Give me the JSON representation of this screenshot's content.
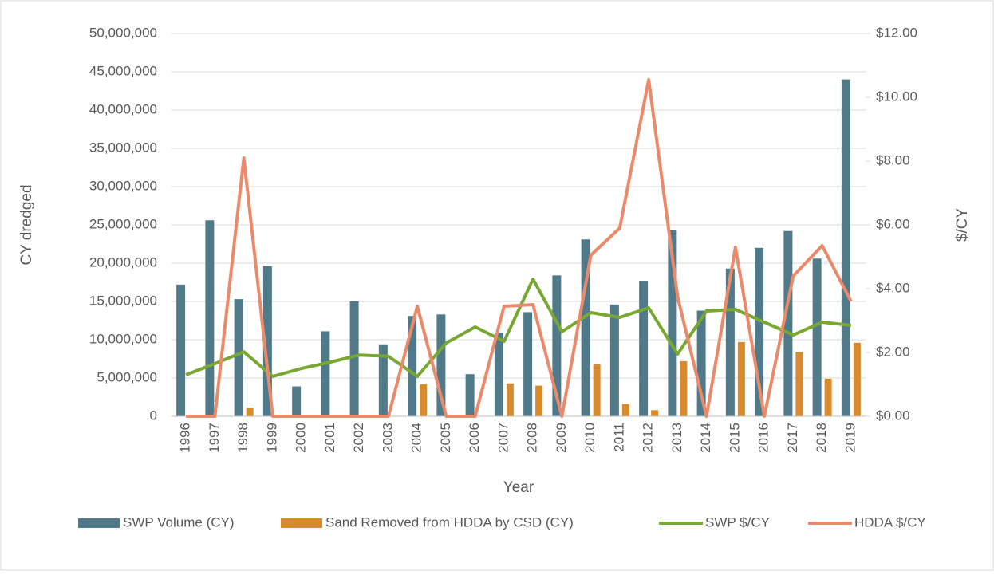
{
  "chart_data": {
    "type": "bar-line",
    "x_label": "Year",
    "y_label": "CY dredged",
    "y2_label": "$/CY",
    "categories": [
      "1996",
      "1997",
      "1998",
      "1999",
      "2000",
      "2001",
      "2002",
      "2003",
      "2004",
      "2005",
      "2006",
      "2007",
      "2008",
      "2009",
      "2010",
      "2011",
      "2012",
      "2013",
      "2014",
      "2015",
      "2016",
      "2017",
      "2018",
      "2019"
    ],
    "series": [
      {
        "name": "SWP Volume (CY)",
        "kind": "bar",
        "color": "#507a89",
        "values": [
          17200000,
          25600000,
          15300000,
          19600000,
          3900000,
          11100000,
          15000000,
          9400000,
          13100000,
          13300000,
          5500000,
          10900000,
          13600000,
          18400000,
          23100000,
          14600000,
          17700000,
          24300000,
          13800000,
          19300000,
          22000000,
          24200000,
          20600000,
          44000000
        ]
      },
      {
        "name": "Sand Removed from HDDA by CSD (CY)",
        "kind": "bar",
        "color": "#d88b2d",
        "values": [
          0,
          0,
          1100000,
          0,
          0,
          0,
          0,
          0,
          4200000,
          0,
          0,
          4300000,
          4000000,
          0,
          6800000,
          1600000,
          800000,
          7200000,
          0,
          9700000,
          0,
          8400000,
          4900000,
          9600000
        ]
      },
      {
        "name": "SWP $/CY",
        "kind": "line",
        "axis": "y2",
        "color": "#78a832",
        "values": [
          1.3,
          1.65,
          2.02,
          1.25,
          1.5,
          1.7,
          1.92,
          1.88,
          1.25,
          2.3,
          2.8,
          2.35,
          4.3,
          2.65,
          3.25,
          3.1,
          3.4,
          1.95,
          3.3,
          3.35,
          2.95,
          2.55,
          2.95,
          2.85
        ]
      },
      {
        "name": "HDDA $/CY",
        "kind": "line",
        "axis": "y2",
        "color": "#eb8a6b",
        "values": [
          0,
          0,
          8.1,
          0,
          0,
          0,
          0,
          0,
          3.45,
          0,
          0,
          3.45,
          3.5,
          0,
          5.05,
          5.9,
          10.55,
          3.75,
          0,
          5.3,
          0,
          4.4,
          5.35,
          3.6
        ]
      }
    ],
    "ylim": [
      0,
      50000000
    ],
    "yticks": [
      0,
      {
        "value": 5000000,
        "label": "5,000,000"
      },
      {
        "value": 10000000,
        "label": "10,000,000"
      },
      {
        "value": 15000000,
        "label": "15,000,000"
      },
      {
        "value": 20000000,
        "label": "20,000,000"
      },
      {
        "value": 25000000,
        "label": "25,000,000"
      },
      {
        "value": 30000000,
        "label": "30,000,000"
      },
      {
        "value": 35000000,
        "label": "35,000,000"
      },
      {
        "value": 40000000,
        "label": "40,000,000"
      },
      {
        "value": 45000000,
        "label": "45,000,000"
      },
      {
        "value": 50000000,
        "label": "50,000,000"
      }
    ],
    "y2lim": [
      0,
      12
    ],
    "y2ticks": [
      {
        "value": 0,
        "label": "$0.00"
      },
      {
        "value": 2,
        "label": "$2.00"
      },
      {
        "value": 4,
        "label": "$4.00"
      },
      {
        "value": 6,
        "label": "$6.00"
      },
      {
        "value": 8,
        "label": "$8.00"
      },
      {
        "value": 10,
        "label": "$10.00"
      },
      {
        "value": 12,
        "label": "$12.00"
      }
    ],
    "grid": true,
    "legend": "bottom"
  }
}
